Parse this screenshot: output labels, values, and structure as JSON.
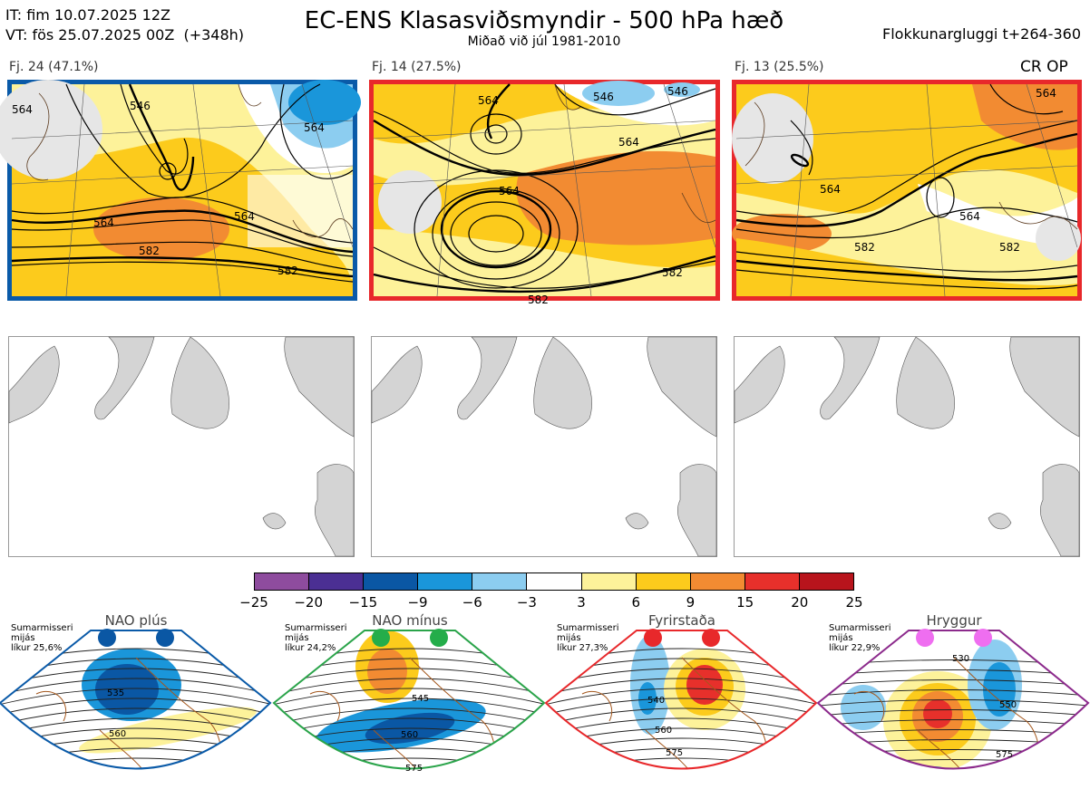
{
  "header": {
    "it_line": "IT: fim 10.07.2025 12Z",
    "vt_line": "VT: fös 25.07.2025 00Z  (+348h)",
    "title": "EC-ENS Klasasviðsmyndir - 500 hPa hæð",
    "subtitle": "Miðað við júl 1981-2010",
    "right_label": "Flokkunargluggi t+264-360",
    "cr_op": "CR OP"
  },
  "clusters": [
    {
      "caption": "Fj. 24 (47.1%)",
      "frame_color": "#0a5aa8",
      "labels": [
        "564",
        "546",
        "564",
        "564",
        "582",
        "582",
        "564"
      ]
    },
    {
      "caption": "Fj. 14 (27.5%)",
      "frame_color": "#e8282b",
      "labels": [
        "564",
        "564",
        "546",
        "546",
        "564",
        "582",
        "582"
      ]
    },
    {
      "caption": "Fj. 13 (25.5%)",
      "frame_color": "#e8282b",
      "labels": [
        "564",
        "564",
        "582",
        "582",
        "564"
      ]
    }
  ],
  "colorbar": {
    "colors": [
      "#8e4c9e",
      "#4b2f93",
      "#0a57a4",
      "#1a96da",
      "#8ccdf0",
      "#ffffff",
      "#fdf29a",
      "#fccb1c",
      "#f28b32",
      "#e7302b",
      "#b8141c"
    ],
    "ticks": [
      "−25",
      "−20",
      "−15",
      "−9",
      "−6",
      "−3",
      "3",
      "6",
      "9",
      "15",
      "20",
      "25"
    ]
  },
  "regimes": [
    {
      "title": "NAO plús",
      "line1": "Sumarmisseri",
      "line2": "mijás",
      "line3": "líkur 25,6%",
      "frame_color": "#0a5aa8",
      "dot_color": "#0a57a4",
      "labels": [
        "535",
        "560"
      ]
    },
    {
      "title": "NAO mínus",
      "line1": "Sumarmisseri",
      "line2": "mijás",
      "line3": "líkur 24,2%",
      "frame_color": "#2aa44a",
      "dot_color": "#24ad4a",
      "labels": [
        "545",
        "560",
        "575"
      ]
    },
    {
      "title": "Fyrirstaða",
      "line1": "Sumarmisseri",
      "line2": "mijás",
      "line3": "líkur 27,3%",
      "frame_color": "#e8282b",
      "dot_color": "#e8282b",
      "labels": [
        "540",
        "560",
        "575"
      ]
    },
    {
      "title": "Hryggur",
      "line1": "Sumarmisseri",
      "line2": "mijás",
      "line3": "líkur 22,9%",
      "frame_color": "#8c2a8c",
      "dot_color": "#ef6ef0",
      "labels": [
        "530",
        "550",
        "575"
      ]
    }
  ]
}
